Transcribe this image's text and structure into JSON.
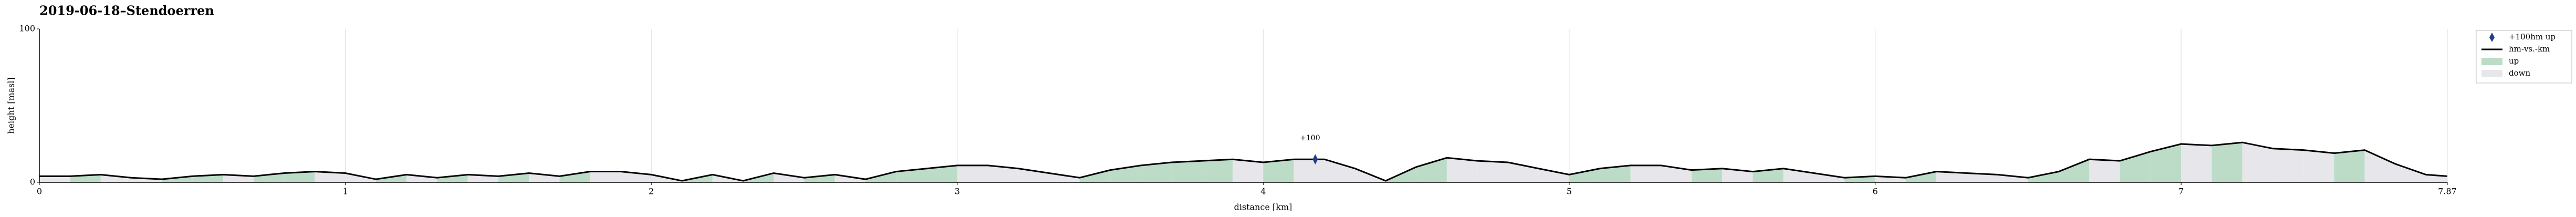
{
  "chart_data": {
    "type": "line",
    "title": "2019-06-18–Stendoerren",
    "xlabel": "distance [km]",
    "ylabel": "height [masl]",
    "x": [
      0.0,
      0.1,
      0.2,
      0.3,
      0.4,
      0.5,
      0.6,
      0.7,
      0.8,
      0.9,
      1.0,
      1.1,
      1.2,
      1.3,
      1.4,
      1.5,
      1.6,
      1.7,
      1.8,
      1.9,
      2.0,
      2.1,
      2.2,
      2.3,
      2.4,
      2.5,
      2.6,
      2.7,
      2.8,
      2.9,
      3.0,
      3.1,
      3.2,
      3.3,
      3.4,
      3.5,
      3.6,
      3.7,
      3.8,
      3.9,
      4.0,
      4.1,
      4.2,
      4.3,
      4.4,
      4.5,
      4.6,
      4.7,
      4.8,
      4.9,
      5.0,
      5.1,
      5.2,
      5.3,
      5.4,
      5.5,
      5.6,
      5.7,
      5.8,
      5.9,
      6.0,
      6.1,
      6.2,
      6.3,
      6.4,
      6.5,
      6.6,
      6.7,
      6.8,
      6.9,
      7.0,
      7.1,
      7.2,
      7.3,
      7.4,
      7.5,
      7.6,
      7.7,
      7.8,
      7.87
    ],
    "series": [
      {
        "name": "hm-vs.-km",
        "color": "#000000",
        "values": [
          4,
          4,
          5,
          3,
          2,
          4,
          5,
          4,
          6,
          7,
          6,
          2,
          5,
          3,
          5,
          4,
          6,
          4,
          7,
          7,
          5,
          1,
          5,
          1,
          6,
          3,
          5,
          2,
          7,
          9,
          11,
          11,
          9,
          6,
          3,
          8,
          11,
          13,
          14,
          15,
          13,
          15,
          15,
          9,
          1,
          10,
          16,
          14,
          13,
          9,
          5,
          9,
          11,
          11,
          8,
          9,
          7,
          9,
          6,
          3,
          4,
          3,
          7,
          6,
          5,
          3,
          7,
          15,
          14,
          20,
          25,
          24,
          26,
          22,
          21,
          19,
          21,
          12,
          5,
          4
        ]
      }
    ],
    "up": {
      "name": "up",
      "color": "#bcdcc8"
    },
    "down": {
      "name": "down",
      "color": "#e7e7eb"
    },
    "markers": {
      "name": "+100hm up",
      "color": "#1f3f8f",
      "x": [
        4.17
      ],
      "values": [
        15
      ],
      "annotations": [
        "+100"
      ]
    },
    "xlim": [
      0,
      7.87
    ],
    "ylim": [
      0,
      100
    ],
    "xticks": [
      0,
      1,
      2,
      3,
      4,
      5,
      6,
      7,
      7.87
    ],
    "yticks": [
      0,
      100
    ],
    "grid": true,
    "legend": "right"
  }
}
